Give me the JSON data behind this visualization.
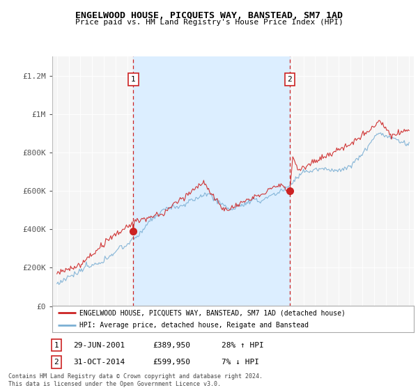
{
  "title": "ENGELWOOD HOUSE, PICQUETS WAY, BANSTEAD, SM7 1AD",
  "subtitle": "Price paid vs. HM Land Registry's House Price Index (HPI)",
  "ylim": [
    0,
    1300000
  ],
  "yticks": [
    0,
    200000,
    400000,
    600000,
    800000,
    1000000,
    1200000
  ],
  "ytick_labels": [
    "£0",
    "£200K",
    "£400K",
    "£600K",
    "£800K",
    "£1M",
    "£1.2M"
  ],
  "x_start_year": 1995,
  "x_end_year": 2025,
  "sale1_date": 2001.5,
  "sale1_price": 389950,
  "sale1_text": "29-JUN-2001",
  "sale1_pct": "28%",
  "sale1_dir": "↑",
  "sale2_date": 2014.83,
  "sale2_price": 599950,
  "sale2_text": "31-OCT-2014",
  "sale2_pct": "7%",
  "sale2_dir": "↓",
  "hpi_color": "#7bafd4",
  "sale_color": "#cc2222",
  "shade_color": "#dceeff",
  "legend_label1": "ENGELWOOD HOUSE, PICQUETS WAY, BANSTEAD, SM7 1AD (detached house)",
  "legend_label2": "HPI: Average price, detached house, Reigate and Banstead",
  "footer1": "Contains HM Land Registry data © Crown copyright and database right 2024.",
  "footer2": "This data is licensed under the Open Government Licence v3.0.",
  "background_color": "#ffffff",
  "plot_bg_color": "#f5f5f5"
}
